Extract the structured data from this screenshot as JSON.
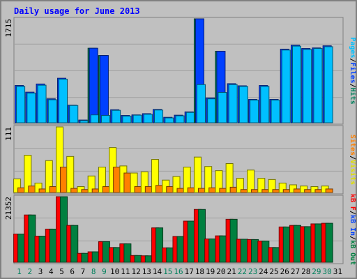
{
  "chart_data": {
    "type": "bar",
    "title": "Daily usage for June 2013",
    "categories": [
      "1",
      "2",
      "3",
      "4",
      "5",
      "6",
      "7",
      "8",
      "9",
      "10",
      "11",
      "12",
      "13",
      "14",
      "15",
      "16",
      "17",
      "18",
      "19",
      "20",
      "21",
      "22",
      "23",
      "24",
      "25",
      "26",
      "27",
      "28",
      "29",
      "30",
      "31"
    ],
    "weekend_days": [
      "1",
      "2",
      "8",
      "9",
      "15",
      "16",
      "22",
      "23",
      "29",
      "30"
    ],
    "grid": true,
    "panels": [
      {
        "name": "traffic",
        "max_label": "1715",
        "ylim": [
          0,
          1715
        ],
        "side_label": [
          "Pages",
          "/",
          "Files",
          "/",
          "Hits"
        ],
        "series": [
          {
            "name": "Hits",
            "color": "#00805c",
            "values": [
              0,
              0,
              0,
              0,
              0,
              0,
              0,
              1230,
              1110,
              0,
              0,
              0,
              0,
              0,
              0,
              0,
              0,
              1715,
              0,
              1180,
              0,
              0,
              0,
              0,
              0,
              0,
              0,
              0,
              0,
              0,
              0
            ]
          },
          {
            "name": "Files",
            "color": "#0040ff",
            "values": [
              615,
              505,
              640,
              395,
              735,
              290,
              45,
              1230,
              1110,
              215,
              120,
              130,
              150,
              220,
              90,
              125,
              180,
              1715,
              410,
              1180,
              645,
              610,
              385,
              615,
              385,
              1215,
              1280,
              1225,
              1235,
              1270,
              0
            ]
          },
          {
            "name": "Pages",
            "color": "#00c0ff",
            "values": [
              600,
              490,
              620,
              380,
              720,
              285,
              35,
              130,
              120,
              205,
              110,
              125,
              140,
              210,
              80,
              115,
              170,
              630,
              395,
              500,
              630,
              600,
              375,
              600,
              375,
              1200,
              1265,
              1210,
              1225,
              1255,
              0
            ]
          }
        ]
      },
      {
        "name": "visits",
        "max_label": "111",
        "ylim": [
          0,
          111
        ],
        "side_label": [
          "Sites",
          "/",
          "Visits"
        ],
        "series": [
          {
            "name": "Visits",
            "color": "#ffff00",
            "values": [
              23,
              63,
              16,
              54,
              111,
              61,
              10,
              28,
              43,
              76,
              45,
              33,
              35,
              56,
              21,
              27,
              43,
              60,
              44,
              37,
              49,
              24,
              38,
              24,
              22,
              16,
              13,
              11,
              10,
              11,
              0
            ]
          },
          {
            "name": "Sites",
            "color": "#ff8000",
            "values": [
              8,
              11,
              6,
              10,
              43,
              7,
              5,
              6,
              10,
              43,
              33,
              10,
              10,
              12,
              10,
              7,
              8,
              7,
              8,
              7,
              9,
              5,
              5,
              5,
              5,
              5,
              6,
              5,
              5,
              6,
              0
            ]
          }
        ]
      },
      {
        "name": "volume",
        "max_label": "21352",
        "ylim": [
          0,
          21352
        ],
        "side_label": [
          "kB F",
          "/",
          "kB In",
          "/",
          "kB Out"
        ],
        "series": [
          {
            "name": "kB F",
            "color": "#ff0000",
            "values": [
              9200,
              15400,
              8500,
              10800,
              21352,
              12000,
              2900,
              3400,
              6700,
              4800,
              6000,
              2200,
              2100,
              11200,
              4700,
              8400,
              13400,
              17200,
              7600,
              8600,
              14000,
              7500,
              7400,
              6900,
              4800,
              11500,
              12000,
              11600,
              12500,
              12700,
              0
            ]
          },
          {
            "name": "kB Out",
            "color": "#008040",
            "values": [
              9200,
              15400,
              8500,
              10800,
              21352,
              12000,
              2900,
              3400,
              6700,
              4800,
              6000,
              2200,
              2100,
              11200,
              4700,
              8400,
              13400,
              17200,
              7600,
              8600,
              14000,
              7500,
              7400,
              6900,
              4800,
              11500,
              12000,
              11600,
              12500,
              12700,
              0
            ]
          }
        ]
      }
    ],
    "side_label_colors": {
      "Pages": "#00c0ff",
      "Files": "#0040ff",
      "Hits": "#00805c",
      "Sites": "#ff8000",
      "Visits": "#e0e000",
      "kB F": "#ff0000",
      "kB In": "#0040ff",
      "kB Out": "#008040",
      "/": "#000000"
    },
    "colors": {
      "background": "#c0c0c0",
      "border": "#808080",
      "grid": "#a0a0a0",
      "title": "#0000ff",
      "day_label": "#000000",
      "weekend_label": "#00805c"
    }
  }
}
